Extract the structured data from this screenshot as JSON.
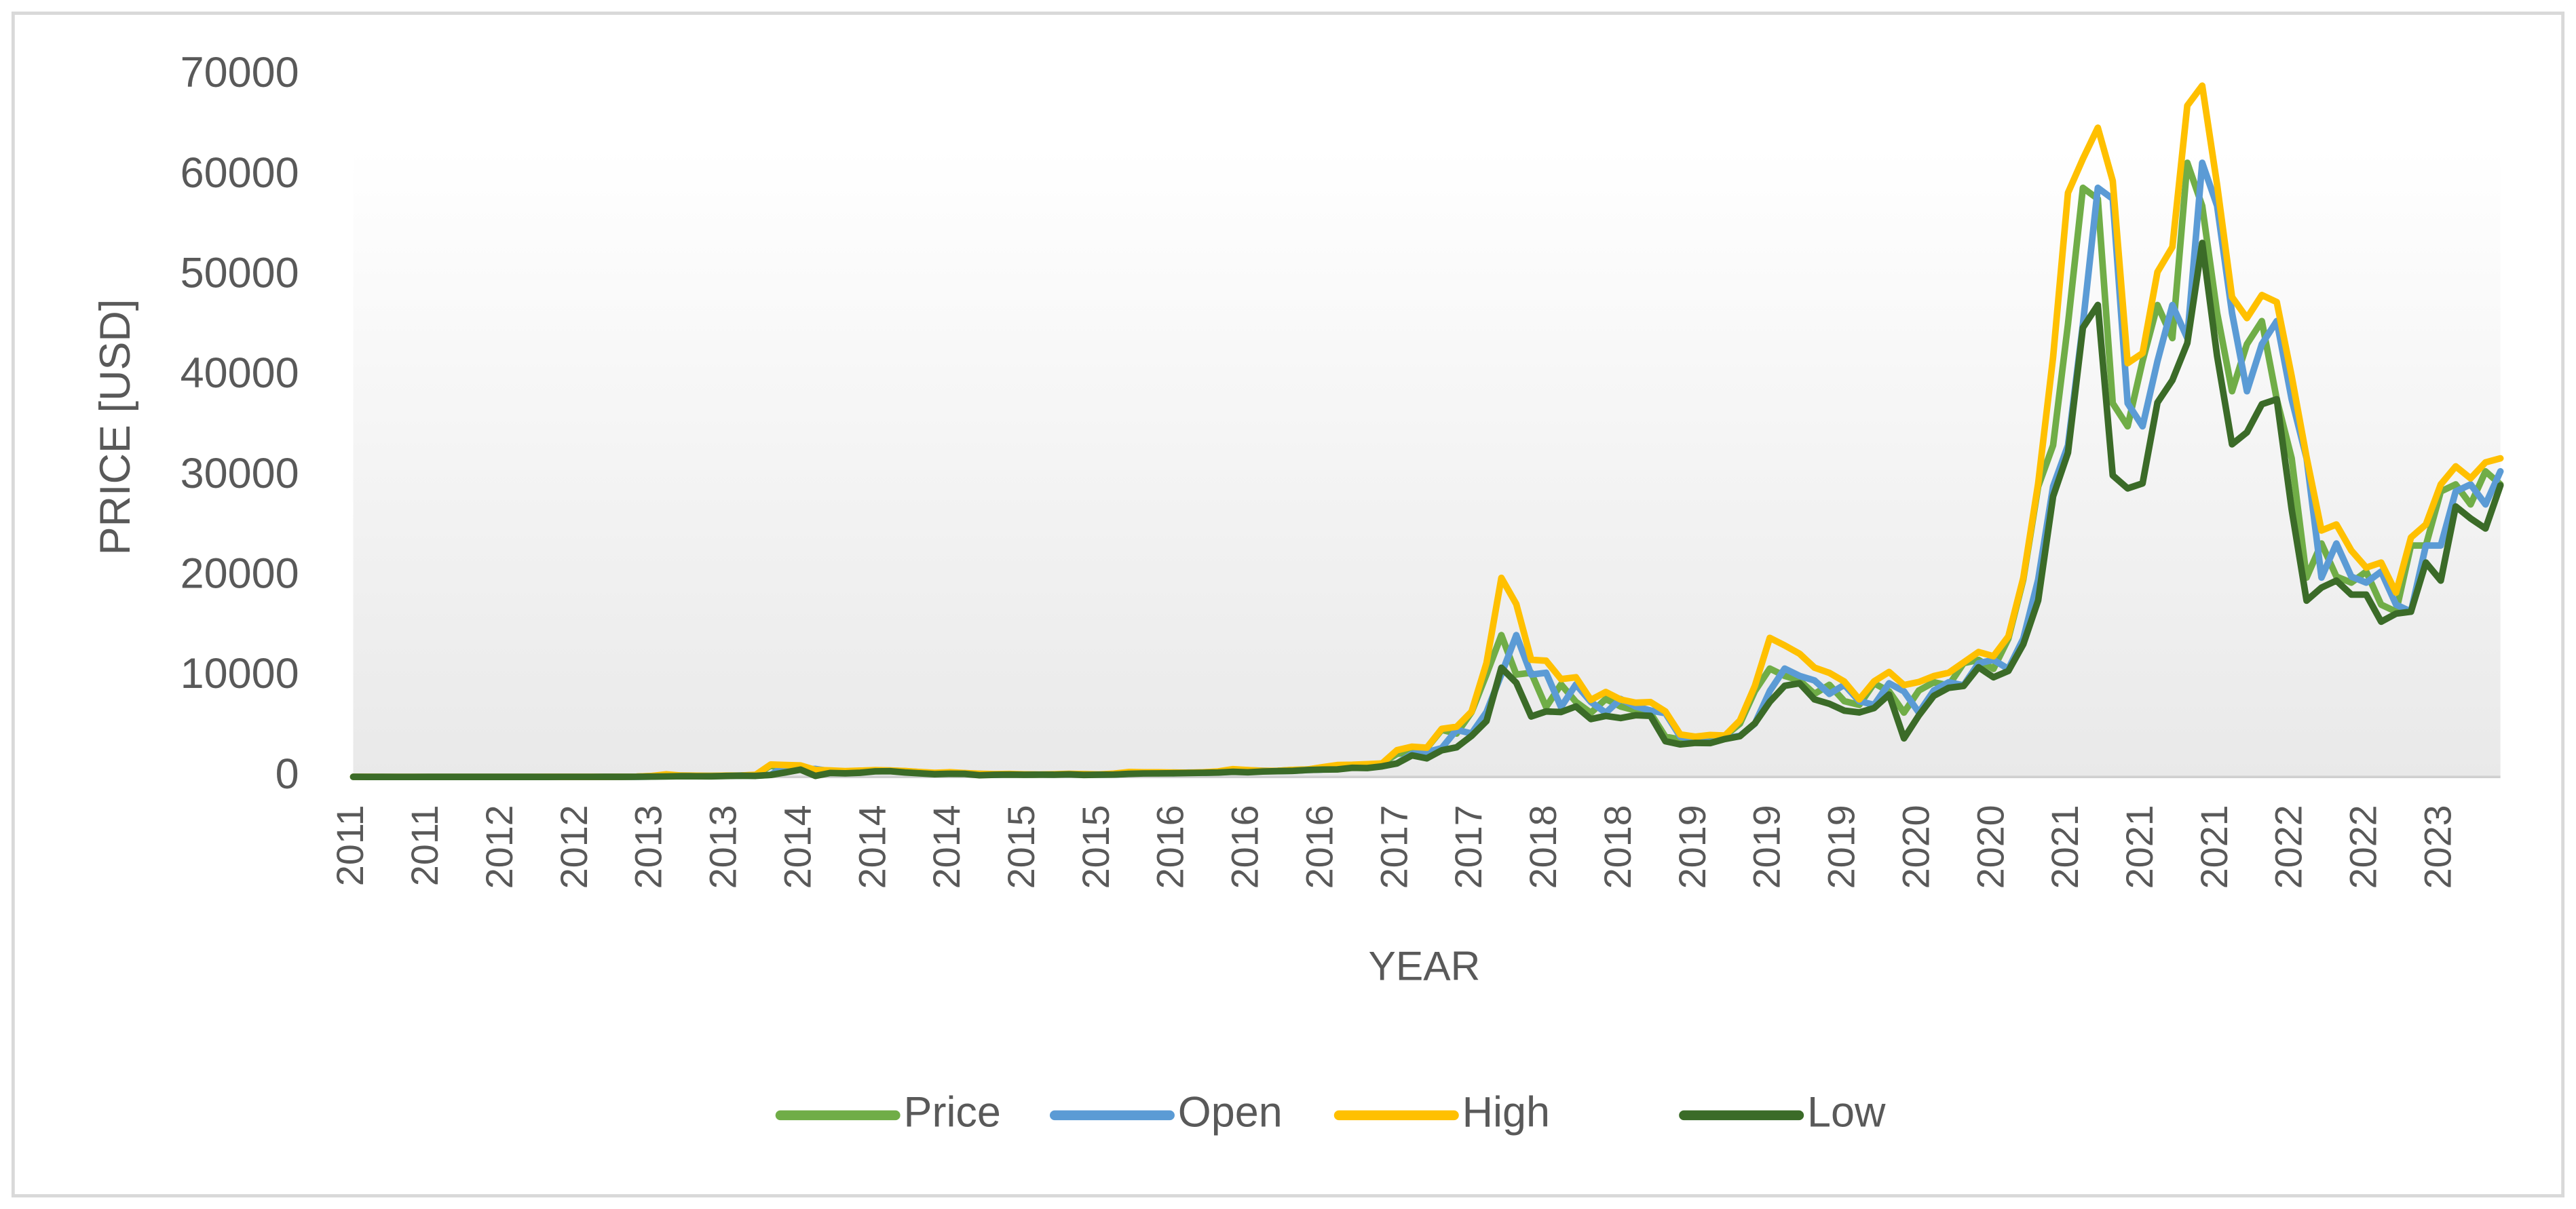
{
  "chart_data": {
    "type": "line",
    "x_label": "YEAR",
    "y_label": "PRICE [USD]",
    "categories": [
      "2011",
      null,
      null,
      null,
      null,
      "2011",
      null,
      null,
      null,
      null,
      "2012",
      null,
      null,
      null,
      null,
      "2012",
      null,
      null,
      null,
      null,
      "2013",
      null,
      null,
      null,
      null,
      "2013",
      null,
      null,
      null,
      null,
      "2014",
      null,
      null,
      null,
      null,
      "2014",
      null,
      null,
      null,
      null,
      "2014",
      null,
      null,
      null,
      null,
      "2015",
      null,
      null,
      null,
      null,
      "2015",
      null,
      null,
      null,
      null,
      "2016",
      null,
      null,
      null,
      null,
      "2016",
      null,
      null,
      null,
      null,
      "2016",
      null,
      null,
      null,
      null,
      "2017",
      null,
      null,
      null,
      null,
      "2017",
      null,
      null,
      null,
      null,
      "2018",
      null,
      null,
      null,
      null,
      "2018",
      null,
      null,
      null,
      null,
      "2019",
      null,
      null,
      null,
      null,
      "2019",
      null,
      null,
      null,
      null,
      "2019",
      null,
      null,
      null,
      null,
      "2020",
      null,
      null,
      null,
      null,
      "2020",
      null,
      null,
      null,
      null,
      "2021",
      null,
      null,
      null,
      null,
      "2021",
      null,
      null,
      null,
      null,
      "2021",
      null,
      null,
      null,
      null,
      "2022",
      null,
      null,
      null,
      null,
      "2022",
      null,
      null,
      null,
      null,
      "2023",
      null,
      null,
      null,
      null
    ],
    "series": [
      {
        "name": "Price",
        "color": "#70ad47",
        "values": [
          13.4,
          8.2,
          5.1,
          3.2,
          3,
          4.7,
          5.5,
          4.9,
          4.9,
          5,
          5.2,
          6.7,
          9.3,
          10,
          12.4,
          11.2,
          12.6,
          13.5,
          20,
          33,
          93,
          139,
          129,
          97,
          106,
          135,
          133,
          203,
          1129,
          732,
          800,
          573,
          458,
          448,
          630,
          640,
          586,
          480,
          387,
          338,
          378,
          320,
          217,
          254,
          244,
          236,
          230,
          264,
          284,
          230,
          236,
          314,
          377,
          430,
          369,
          437,
          416,
          448,
          531,
          674,
          624,
          575,
          609,
          698,
          742,
          963,
          970,
          1190,
          1080,
          1348,
          2300,
          2480,
          2875,
          4703,
          4338,
          6468,
          10233,
          14156,
          10221,
          10397,
          6973,
          9240,
          7494,
          6404,
          7780,
          7037,
          6635,
          6365,
          4017,
          3742,
          3457,
          3854,
          4105,
          5320,
          8574,
          10817,
          10085,
          9631,
          8293,
          9199,
          7569,
          7193,
          9350,
          8544,
          6424,
          8629,
          9454,
          9137,
          11351,
          11681,
          10784,
          13804,
          19700,
          28990,
          33100,
          45200,
          58800,
          57700,
          37300,
          35000,
          41500,
          47100,
          43800,
          61300,
          57000,
          46300,
          38500,
          43200,
          45500,
          37700,
          31800,
          19900,
          23300,
          20000,
          19400,
          20500,
          17200,
          16500,
          23100,
          23100,
          28500,
          29200,
          27200,
          30500,
          29200
        ]
      },
      {
        "name": "Open",
        "color": "#5b9bd5",
        "values": [
          15.4,
          13.4,
          8.2,
          5.1,
          3.2,
          3,
          4.7,
          5.5,
          4.9,
          4.9,
          5,
          5.2,
          6.7,
          9.3,
          10,
          12.4,
          11.2,
          12.6,
          13.5,
          20,
          33,
          93,
          139,
          129,
          97,
          106,
          135,
          133,
          203,
          1129,
          732,
          800,
          573,
          458,
          448,
          630,
          640,
          586,
          480,
          387,
          338,
          378,
          320,
          217,
          254,
          244,
          236,
          230,
          264,
          284,
          230,
          236,
          314,
          377,
          430,
          369,
          437,
          416,
          448,
          531,
          674,
          624,
          575,
          609,
          698,
          742,
          963,
          970,
          1190,
          1080,
          1348,
          2300,
          2480,
          2875,
          4703,
          4338,
          6468,
          10233,
          14156,
          10221,
          10397,
          6973,
          9240,
          7494,
          6404,
          7780,
          7037,
          6635,
          6365,
          4017,
          3742,
          3457,
          3854,
          4105,
          5320,
          8574,
          10817,
          10085,
          9631,
          8293,
          9199,
          7569,
          7193,
          9350,
          8544,
          6424,
          8629,
          9454,
          9137,
          11351,
          11681,
          10784,
          13804,
          19700,
          28990,
          33100,
          45200,
          58800,
          57700,
          37300,
          35000,
          41500,
          47100,
          43800,
          61300,
          57000,
          46300,
          38500,
          43200,
          45500,
          37700,
          31800,
          19900,
          23300,
          20000,
          19400,
          20500,
          17200,
          16500,
          23100,
          23100,
          28500,
          29200,
          27200,
          30500
        ]
      },
      {
        "name": "High",
        "color": "#ffc000",
        "values": [
          17,
          14,
          8.7,
          5.2,
          3.7,
          5,
          7.2,
          6.5,
          5.4,
          5.4,
          5.2,
          7.1,
          9.6,
          16.4,
          13,
          13,
          12.9,
          13.5,
          21,
          34,
          95,
          266,
          140,
          129,
          111,
          137,
          146,
          221,
          1242,
          1190,
          1150,
          701,
          650,
          580,
          629,
          680,
          650,
          595,
          490,
          415,
          470,
          385,
          320,
          290,
          300,
          260,
          247,
          268,
          315,
          285,
          252,
          333,
          495,
          465,
          462,
          442,
          434,
          466,
          549,
          778,
          689,
          610,
          620,
          702,
          743,
          973,
          1190,
          1215,
          1280,
          1350,
          2670,
          3020,
          2920,
          4800,
          5010,
          6520,
          11370,
          19870,
          17250,
          11700,
          11600,
          9770,
          9950,
          7690,
          8480,
          7730,
          7410,
          7470,
          6540,
          4240,
          4020,
          4190,
          4140,
          5640,
          9090,
          13880,
          13130,
          12300,
          10910,
          10390,
          9520,
          7740,
          9550,
          10480,
          9170,
          9480,
          10070,
          10400,
          11430,
          12470,
          12050,
          14030,
          19860,
          29300,
          41900,
          58300,
          61700,
          64800,
          59500,
          41300,
          42300,
          50400,
          52900,
          67000,
          69000,
          59100,
          47900,
          45800,
          48100,
          47400,
          40000,
          31900,
          24600,
          25200,
          22600,
          20900,
          21400,
          18400,
          23900,
          25200,
          29200,
          31000,
          29800,
          31400,
          31800
        ]
      },
      {
        "name": "Low",
        "color": "#3b6b28",
        "values": [
          12,
          6.8,
          4.4,
          2.3,
          2,
          2.9,
          5.3,
          4.2,
          4.3,
          4.7,
          4.9,
          5.2,
          6.5,
          7.2,
          9.8,
          9.7,
          10.6,
          12.5,
          13.2,
          20,
          33,
          52,
          79,
          71,
          66,
          98,
          124,
          109,
          203,
          459,
          732,
          104,
          400,
          360,
          420,
          560,
          575,
          450,
          360,
          275,
          320,
          310,
          170,
          215,
          232,
          215,
          230,
          223,
          257,
          199,
          226,
          236,
          310,
          350,
          355,
          368,
          395,
          415,
          440,
          515,
          465,
          545,
          580,
          605,
          695,
          738,
          752,
          915,
          890,
          1060,
          1350,
          2150,
          1860,
          2660,
          2960,
          4100,
          5580,
          10900,
          9400,
          6040,
          6540,
          6480,
          7040,
          5780,
          6090,
          5880,
          6160,
          6100,
          3570,
          3250,
          3400,
          3380,
          3790,
          4070,
          5350,
          7500,
          9100,
          9350,
          7740,
          7300,
          6620,
          6440,
          6880,
          8230,
          3850,
          6150,
          8100,
          8900,
          9080,
          10950,
          9950,
          10580,
          13240,
          17620,
          28000,
          32370,
          44840,
          47110,
          30100,
          28800,
          29300,
          37370,
          39600,
          43300,
          53300,
          42000,
          33200,
          34400,
          37200,
          37700,
          26700,
          17600,
          18900,
          19600,
          18200,
          18200,
          15500,
          16300,
          16500,
          21400,
          19600,
          27000,
          25800,
          24800,
          29100
        ]
      }
    ],
    "ylim": [
      0,
      70000
    ],
    "yticks": [
      0,
      10000,
      20000,
      30000,
      40000,
      50000,
      60000,
      70000
    ],
    "grid": false,
    "legend": "bottom"
  }
}
